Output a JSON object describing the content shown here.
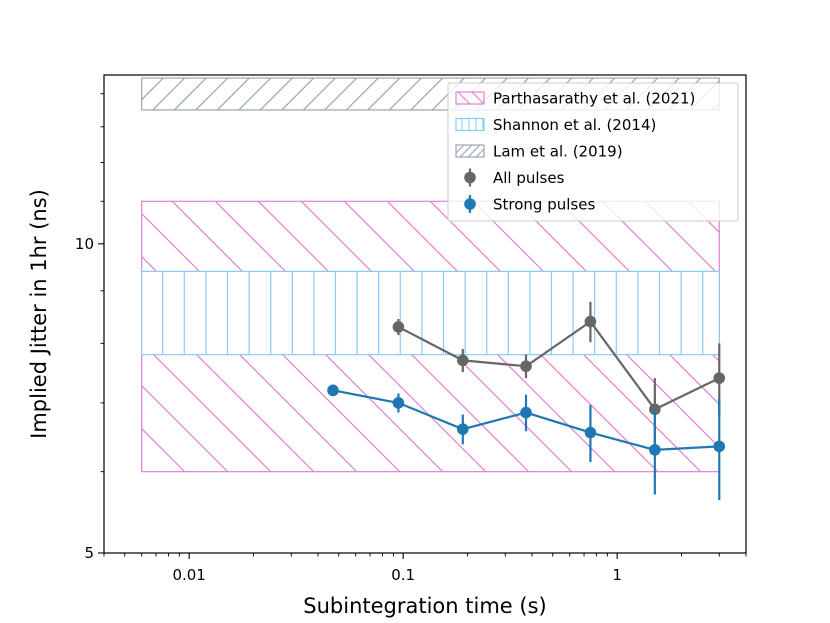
{
  "chart_data": {
    "type": "line",
    "title": "",
    "xlabel": "Subintegration time (s)",
    "ylabel": "Implied Jitter in 1hr (ns)",
    "xscale": "log",
    "yscale": "log",
    "xlim": [
      0.004,
      4.0
    ],
    "ylim": [
      5,
      14.6
    ],
    "xticks": [
      {
        "value": 0.01,
        "label": "0.01"
      },
      {
        "value": 0.1,
        "label": "0.1"
      },
      {
        "value": 1,
        "label": "1"
      }
    ],
    "yticks": [
      {
        "value": 5,
        "label": "5"
      },
      {
        "value": 10,
        "label": "10"
      }
    ],
    "bands": [
      {
        "name": "Parthasarathy et al. (2021)",
        "x": [
          0.006,
          3.0
        ],
        "y": [
          6.0,
          11.0
        ],
        "color": "#e27fd6",
        "hatch": "diagonal-back"
      },
      {
        "name": "Shannon et al. (2014)",
        "x": [
          0.006,
          3.0
        ],
        "y": [
          7.8,
          9.4
        ],
        "color": "#87cdf3",
        "hatch": "vertical"
      },
      {
        "name": "Lam et al. (2019)",
        "x": [
          0.006,
          3.0
        ],
        "y": [
          13.5,
          14.5
        ],
        "color": "#9aa5b4",
        "hatch": "diagonal-forward"
      }
    ],
    "series": [
      {
        "name": "All pulses",
        "color": "#666666",
        "x": [
          0.095,
          0.19,
          0.375,
          0.75,
          1.5,
          3.0
        ],
        "y": [
          8.3,
          7.7,
          7.6,
          8.4,
          6.9,
          7.4
        ],
        "yerr": [
          0.15,
          0.2,
          0.2,
          0.38,
          0.5,
          0.6
        ]
      },
      {
        "name": "Strong pulses",
        "color": "#1f77b4",
        "x": [
          0.047,
          0.095,
          0.19,
          0.375,
          0.75,
          1.5,
          3.0
        ],
        "y": [
          7.2,
          7.0,
          6.6,
          6.85,
          6.55,
          6.3,
          6.35
        ],
        "yerr": [
          0,
          0.15,
          0.22,
          0.28,
          0.42,
          0.6,
          0.72
        ]
      }
    ],
    "legend": {
      "placement": "top-right",
      "entries": [
        "Parthasarathy et al. (2021)",
        "Shannon et al. (2014)",
        "Lam et al. (2019)",
        "All pulses",
        "Strong pulses"
      ]
    }
  }
}
